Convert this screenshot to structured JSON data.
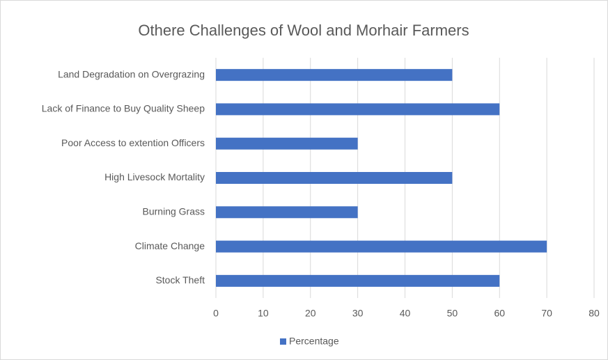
{
  "chart_data": {
    "type": "bar",
    "orientation": "horizontal",
    "title": "Othere Challenges of Wool and Morhair Farmers",
    "categories": [
      "Stock Theft",
      "Climate Change",
      "Burning Grass",
      "High Livesock Mortality",
      "Poor Access to extention Officers",
      "Lack of Finance to Buy Quality Sheep",
      "Land Degradation on Overgrazing"
    ],
    "series": [
      {
        "name": "Percentage",
        "color": "#4472c4",
        "values": [
          60,
          70,
          30,
          50,
          30,
          60,
          50
        ]
      }
    ],
    "xlim": [
      0,
      80
    ],
    "xticks": [
      0,
      10,
      20,
      30,
      40,
      50,
      60,
      70,
      80
    ],
    "grid": true,
    "legend": "bottom"
  }
}
